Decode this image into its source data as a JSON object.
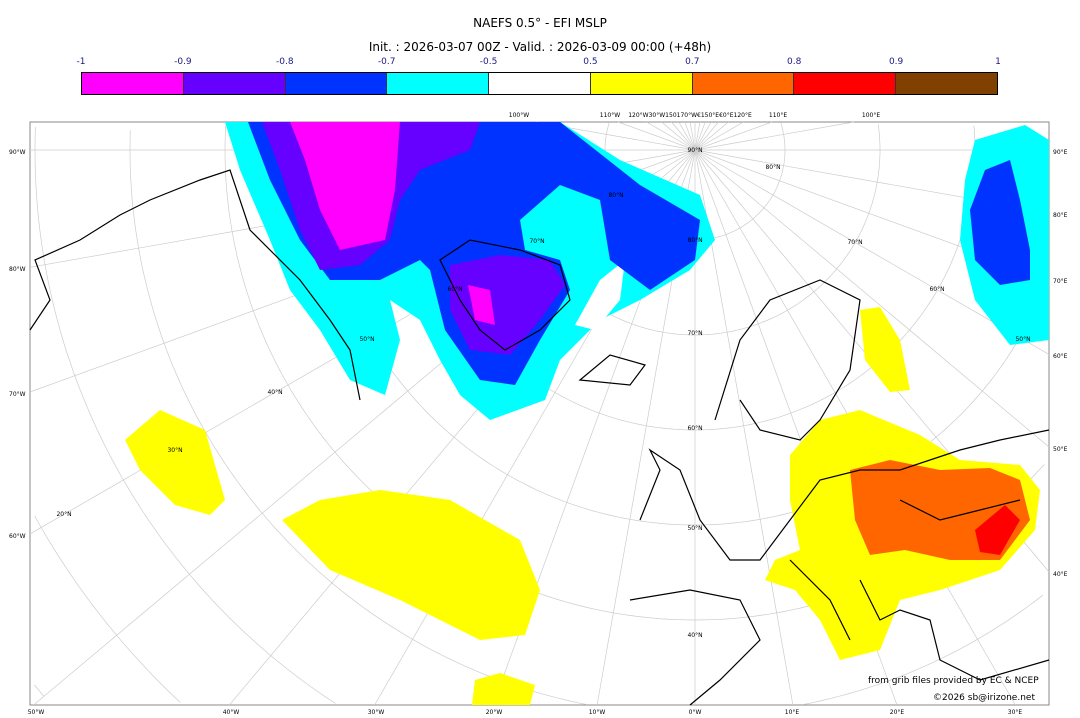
{
  "title": "NAEFS 0.5° - EFI MSLP",
  "subtitle": "Init. : 2026-03-07 00Z - Valid. : 2026-03-09 00:00 (+48h)",
  "colorbar": {
    "ticks": [
      "-1",
      "-0.9",
      "-0.8",
      "-0.7",
      "-0.5",
      "0.5",
      "0.7",
      "0.8",
      "0.9",
      "1"
    ],
    "colors": [
      "#ff00ff",
      "#6600ff",
      "#0033ff",
      "#00ffff",
      "#ffffff",
      "#ffff00",
      "#ff6600",
      "#ff0000",
      "#804000"
    ]
  },
  "map": {
    "left_labels": [
      "90°W",
      "80°W",
      "70°W",
      "60°W"
    ],
    "right_labels": [
      "90°E",
      "80°E",
      "70°E",
      "60°E",
      "50°E",
      "40°E"
    ],
    "bottom_labels": [
      "50°W",
      "40°W",
      "30°W",
      "20°W",
      "10°W",
      "0°W",
      "10°E",
      "20°E",
      "30°E"
    ],
    "top_labels": [
      "100°W",
      "110°W",
      "120°W30°W150170°W€150°E€0°E120°E",
      "110°E",
      "100°E"
    ],
    "lat_labels": [
      "90°N",
      "80°N",
      "80°N",
      "70°N",
      "60°N",
      "50°N",
      "40°N",
      "30°N",
      "20°N",
      "70°N",
      "60°N",
      "50°N",
      "40°N",
      "80°N",
      "70°N",
      "60°N",
      "50°N"
    ]
  },
  "credits": {
    "source": "from grib files provided by EC & NCEP",
    "copyright": "©2026 sb@irizone.net"
  }
}
